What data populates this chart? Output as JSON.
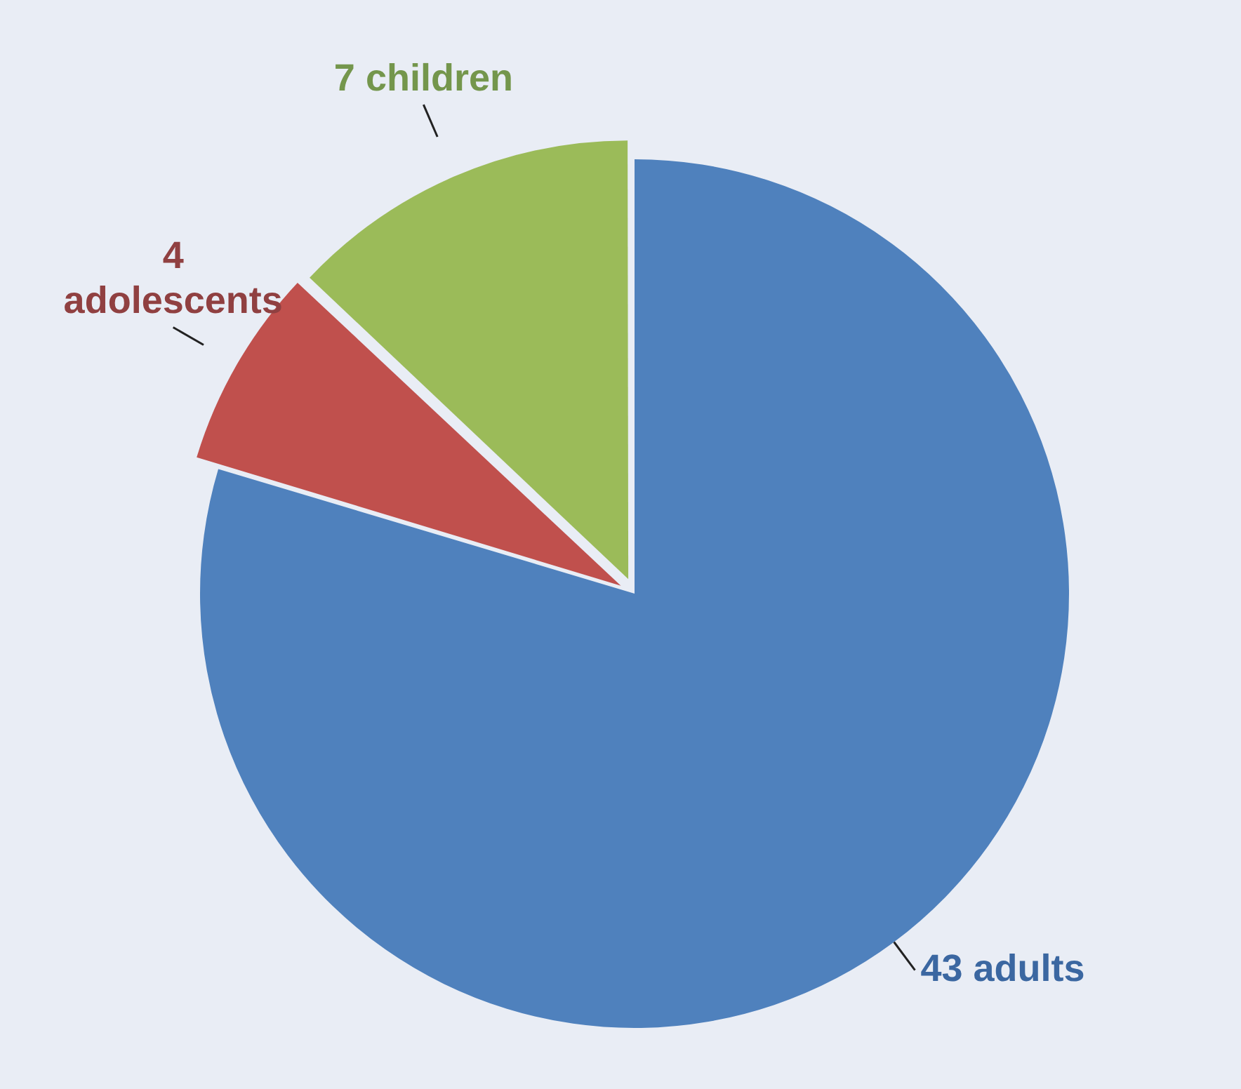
{
  "chart_data": {
    "type": "pie",
    "categories": [
      "43 adults",
      "4 adolescents",
      "7 children"
    ],
    "values": [
      43,
      4,
      7
    ],
    "colors": [
      "#4f81bd",
      "#c0504d",
      "#9bbb59"
    ],
    "legend": false
  }
}
